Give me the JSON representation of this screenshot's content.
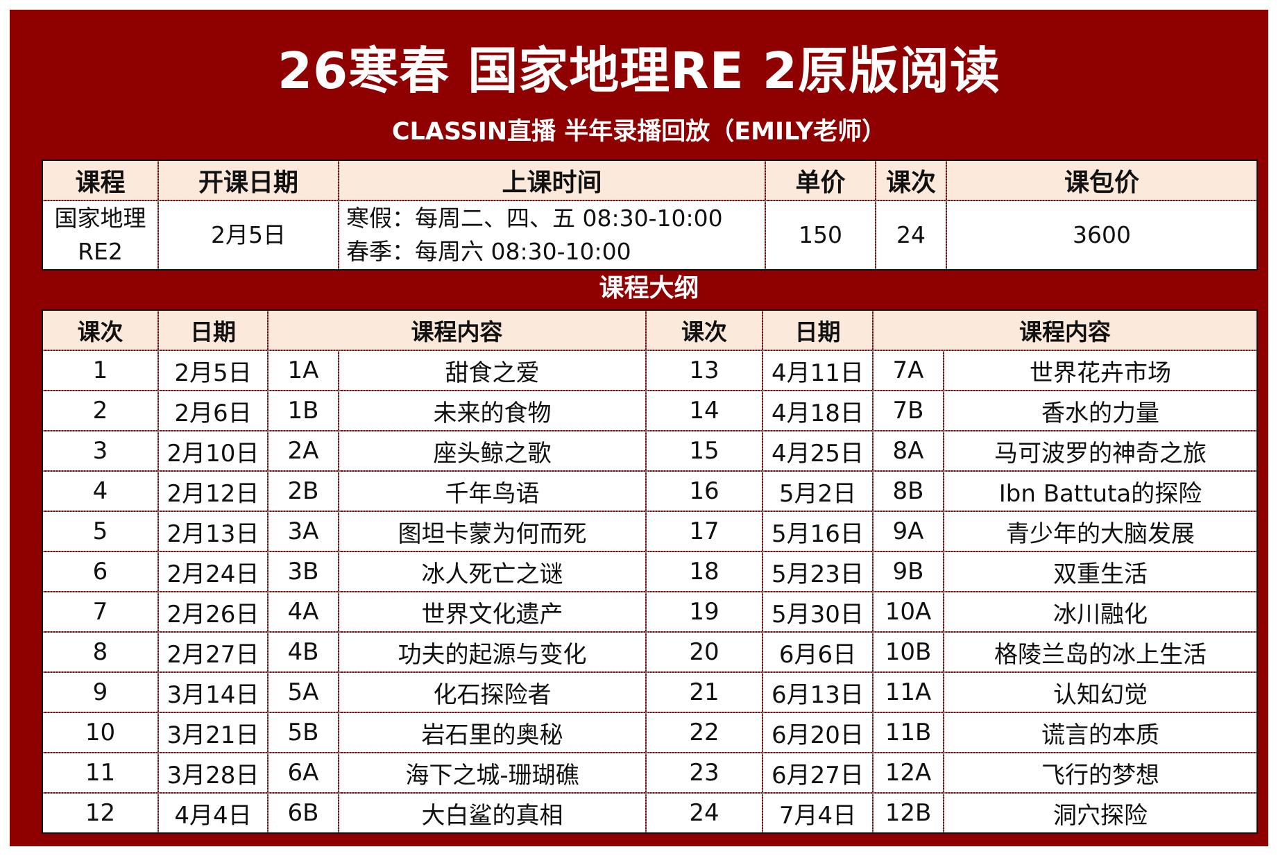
{
  "title": "26寒春 国家地理RE 2原版阅读",
  "subtitle": "CLASSIN直播 半年录播回放（EMILY老师）",
  "info": {
    "headers": [
      "课程",
      "开课日期",
      "上课时间",
      "单价",
      "课次",
      "课包价"
    ],
    "course_line1": "国家地理",
    "course_line2": "RE2",
    "start_date": "2月5日",
    "schedule_line1": "寒假：每周二、四、五 08:30-10:00",
    "schedule_line2": "春季：每周六 08:30-10:00",
    "unit_price": "150",
    "sessions": "24",
    "package_price": "3600"
  },
  "outline": {
    "title": "课程大纲",
    "headers": [
      "课次",
      "日期",
      "课程内容",
      "课次",
      "日期",
      "课程内容"
    ],
    "rows": [
      {
        "n1": "1",
        "d1": "2月5日",
        "u1": "1A",
        "t1": "甜食之爱",
        "n2": "13",
        "d2": "4月11日",
        "u2": "7A",
        "t2": "世界花卉市场"
      },
      {
        "n1": "2",
        "d1": "2月6日",
        "u1": "1B",
        "t1": "未来的食物",
        "n2": "14",
        "d2": "4月18日",
        "u2": "7B",
        "t2": "香水的力量"
      },
      {
        "n1": "3",
        "d1": "2月10日",
        "u1": "2A",
        "t1": "座头鲸之歌",
        "n2": "15",
        "d2": "4月25日",
        "u2": "8A",
        "t2": "马可波罗的神奇之旅"
      },
      {
        "n1": "4",
        "d1": "2月12日",
        "u1": "2B",
        "t1": "千年鸟语",
        "n2": "16",
        "d2": "5月2日",
        "u2": "8B",
        "t2": "Ibn Battuta的探险"
      },
      {
        "n1": "5",
        "d1": "2月13日",
        "u1": "3A",
        "t1": "图坦卡蒙为何而死",
        "n2": "17",
        "d2": "5月16日",
        "u2": "9A",
        "t2": "青少年的大脑发展"
      },
      {
        "n1": "6",
        "d1": "2月24日",
        "u1": "3B",
        "t1": "冰人死亡之谜",
        "n2": "18",
        "d2": "5月23日",
        "u2": "9B",
        "t2": "双重生活"
      },
      {
        "n1": "7",
        "d1": "2月26日",
        "u1": "4A",
        "t1": "世界文化遗产",
        "n2": "19",
        "d2": "5月30日",
        "u2": "10A",
        "t2": "冰川融化"
      },
      {
        "n1": "8",
        "d1": "2月27日",
        "u1": "4B",
        "t1": "功夫的起源与变化",
        "n2": "20",
        "d2": "6月6日",
        "u2": "10B",
        "t2": "格陵兰岛的冰上生活"
      },
      {
        "n1": "9",
        "d1": "3月14日",
        "u1": "5A",
        "t1": "化石探险者",
        "n2": "21",
        "d2": "6月13日",
        "u2": "11A",
        "t2": "认知幻觉"
      },
      {
        "n1": "10",
        "d1": "3月21日",
        "u1": "5B",
        "t1": "岩石里的奥秘",
        "n2": "22",
        "d2": "6月20日",
        "u2": "11B",
        "t2": "谎言的本质"
      },
      {
        "n1": "11",
        "d1": "3月28日",
        "u1": "6A",
        "t1": "海下之城-珊瑚礁",
        "n2": "23",
        "d2": "6月27日",
        "u2": "12A",
        "t2": "飞行的梦想"
      },
      {
        "n1": "12",
        "d1": "4月4日",
        "u1": "6B",
        "t1": "大白鲨的真相",
        "n2": "24",
        "d2": "7月4日",
        "u2": "12B",
        "t2": "洞穴探险"
      }
    ]
  },
  "colors": {
    "frame": "#8f0000",
    "header_fill": "#fbe9dc",
    "title_text": "#ffffff"
  }
}
